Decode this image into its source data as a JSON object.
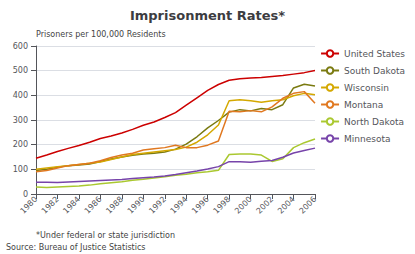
{
  "chart_data": {
    "type": "line",
    "title": "Imprisonment Rates*",
    "ylabel": "Prisoners per 100,000 Residents",
    "annotations": [
      "*Under federal or state jurisdiction",
      "Source: Bureau of Justice Statistics"
    ],
    "x": [
      1980,
      1981,
      1982,
      1983,
      1984,
      1985,
      1986,
      1987,
      1988,
      1989,
      1990,
      1991,
      1992,
      1993,
      1994,
      1995,
      1996,
      1997,
      1998,
      1999,
      2000,
      2001,
      2002,
      2003,
      2004,
      2005,
      2006
    ],
    "series": [
      {
        "name": "United States",
        "color": "#cc0000",
        "values": [
          145,
          158,
          172,
          185,
          197,
          210,
          225,
          235,
          247,
          262,
          279,
          292,
          310,
          330,
          360,
          390,
          420,
          444,
          461,
          467,
          470,
          472,
          476,
          480,
          486,
          492,
          501
        ]
      },
      {
        "name": "South Dakota",
        "color": "#7a7a10",
        "values": [
          95,
          100,
          108,
          115,
          118,
          122,
          132,
          142,
          150,
          157,
          162,
          165,
          170,
          182,
          202,
          232,
          268,
          298,
          332,
          342,
          337,
          347,
          342,
          362,
          430,
          445,
          438
        ]
      },
      {
        "name": "Wisconsin",
        "color": "#d4a800",
        "values": [
          100,
          105,
          110,
          115,
          120,
          125,
          130,
          140,
          150,
          160,
          165,
          170,
          175,
          180,
          190,
          210,
          240,
          280,
          378,
          382,
          378,
          372,
          378,
          382,
          398,
          408,
          402
        ]
      },
      {
        "name": "Montana",
        "color": "#e07820",
        "values": [
          90,
          95,
          105,
          115,
          120,
          125,
          135,
          148,
          158,
          165,
          178,
          183,
          188,
          198,
          188,
          188,
          198,
          215,
          335,
          333,
          338,
          333,
          353,
          388,
          408,
          415,
          368
        ]
      },
      {
        "name": "North Dakota",
        "color": "#aac830",
        "values": [
          28,
          26,
          28,
          30,
          32,
          36,
          42,
          46,
          50,
          56,
          60,
          65,
          70,
          76,
          80,
          86,
          90,
          96,
          160,
          162,
          162,
          158,
          132,
          143,
          188,
          208,
          223
        ]
      },
      {
        "name": "Minnesota",
        "color": "#7744aa",
        "values": [
          48,
          48,
          47,
          49,
          51,
          53,
          55,
          57,
          59,
          63,
          66,
          69,
          73,
          79,
          86,
          93,
          101,
          111,
          131,
          131,
          129,
          133,
          136,
          149,
          166,
          176,
          186
        ]
      }
    ],
    "xlim": [
      1980,
      2006
    ],
    "xticks": [
      1980,
      1982,
      1984,
      1986,
      1988,
      1990,
      1992,
      1994,
      1996,
      1998,
      2000,
      2002,
      2004,
      2006
    ],
    "ylim": [
      0,
      600
    ],
    "yticks": [
      0,
      100,
      200,
      300,
      400,
      500,
      600
    ],
    "grid": true,
    "legend": "right"
  }
}
